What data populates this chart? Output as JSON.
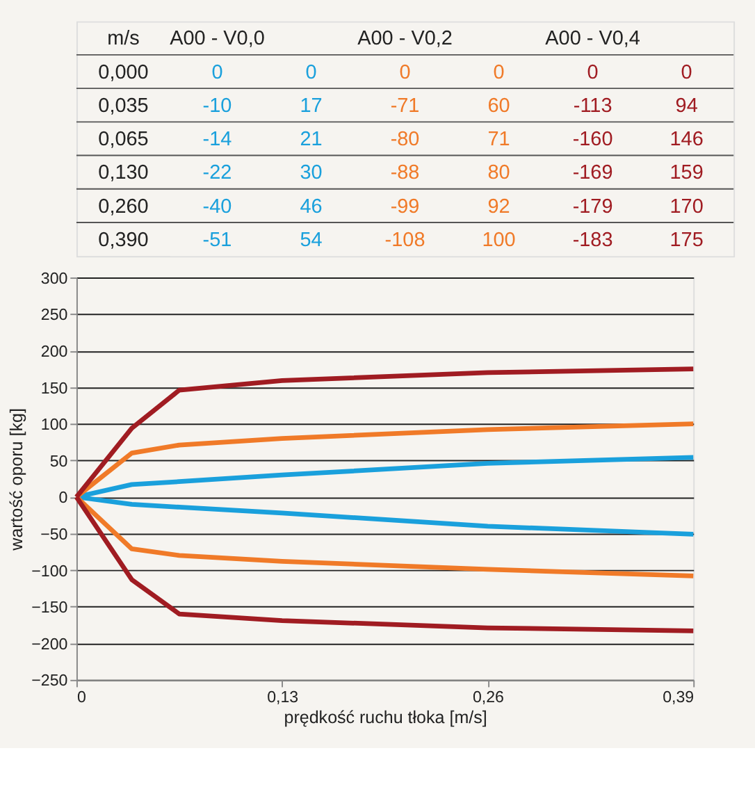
{
  "chart_data": [
    {
      "type": "heatmap",
      "ylabel": "m/s",
      "categories": [
        "A00 - V0,0",
        null,
        "A00 - V0,2",
        null,
        "A00 - V0,4",
        null
      ],
      "y_categories": [
        "0,000",
        "0,035",
        "0,065",
        "0,130",
        "0,260",
        "0,390"
      ],
      "cells": [
        [
          0,
          0,
          0,
          0,
          0,
          0
        ],
        [
          -10,
          17,
          -71,
          60,
          -113,
          94
        ],
        [
          -14,
          21,
          -80,
          71,
          -160,
          146
        ],
        [
          -22,
          30,
          -88,
          80,
          -169,
          159
        ],
        [
          -40,
          46,
          -99,
          92,
          -179,
          170
        ],
        [
          -51,
          54,
          -108,
          100,
          -183,
          175
        ]
      ],
      "colors": [
        "#1aa0dc",
        "#1aa0dc",
        "#f07a28",
        "#f07a28",
        "#a01c22",
        "#a01c22"
      ],
      "data_labels": true
    },
    {
      "type": "line",
      "x": [
        0,
        0.035,
        0.065,
        0.13,
        0.26,
        0.39
      ],
      "series": [
        {
          "color": "#1aa0dc",
          "values": [
            0,
            -10,
            -14,
            -22,
            -40,
            -51
          ]
        },
        {
          "color": "#1aa0dc",
          "values": [
            0,
            17,
            21,
            30,
            46,
            54
          ]
        },
        {
          "color": "#f07a28",
          "values": [
            0,
            -71,
            -80,
            -88,
            -99,
            -108
          ]
        },
        {
          "color": "#f07a28",
          "values": [
            0,
            60,
            71,
            80,
            92,
            100
          ]
        },
        {
          "color": "#a01c22",
          "values": [
            0,
            -113,
            -160,
            -169,
            -179,
            -183
          ]
        },
        {
          "color": "#a01c22",
          "values": [
            0,
            94,
            146,
            159,
            170,
            175
          ]
        }
      ],
      "xlabel": "prędkość ruchu tłoka [m/s]",
      "ylabel": "wartość oporu [kg]",
      "xlim": [
        0,
        0.39
      ],
      "xticks": [
        {
          "value": 0,
          "label": "0"
        },
        {
          "value": 0.13,
          "label": "0,13"
        },
        {
          "value": 0.26,
          "label": "0,26"
        },
        {
          "value": 0.39,
          "label": "0,39"
        }
      ],
      "ylim": [
        -250,
        300
      ],
      "yticks": [
        -250,
        -200,
        -150,
        -100,
        -50,
        0,
        50,
        100,
        150,
        200,
        250,
        300
      ],
      "grid": "y",
      "legend": false,
      "marker": "none",
      "line_style": "solid"
    }
  ]
}
